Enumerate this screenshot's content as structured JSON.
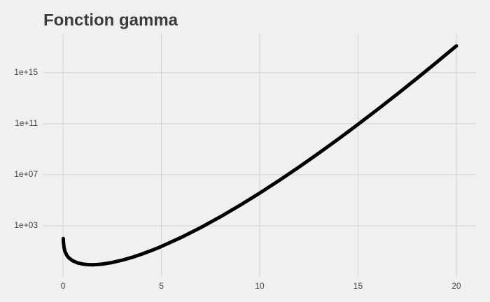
{
  "chart_data": {
    "type": "line",
    "title": "Fonction gamma",
    "x": [
      0.01,
      0.02,
      0.05,
      0.1,
      0.2,
      0.3,
      0.5,
      0.75,
      1,
      1.25,
      1.5,
      1.75,
      2,
      2.5,
      3,
      3.5,
      4,
      4.5,
      5,
      6,
      7,
      8,
      9,
      10,
      11,
      12,
      13,
      14,
      15,
      16,
      17,
      18,
      19,
      20
    ],
    "series": [
      {
        "color": "#000000",
        "values": [
          99.43,
          49.44,
          19.47,
          9.514,
          4.591,
          2.992,
          1.772,
          1.225,
          1,
          0.9064,
          0.8862,
          0.9191,
          1,
          1.329,
          2,
          3.323,
          6,
          11.63,
          24,
          120,
          720,
          5040,
          40320,
          362880,
          3628800,
          39916800,
          479001600,
          6227020800,
          87178291200,
          1307674000000.0,
          20922790000000.0,
          355687400000000.0,
          6402374000000000.0,
          1.216451e+17
        ]
      }
    ],
    "xlim": [
      -1,
      21
    ],
    "xticks": [
      0,
      5,
      10,
      15,
      20
    ],
    "ylim": [
      0.1,
      1e+18
    ],
    "log_y": true,
    "yticks": [
      {
        "value": 1000,
        "label": "1e+03"
      },
      {
        "value": 10000000.0,
        "label": "1e+07"
      },
      {
        "value": 100000000000.0,
        "label": "1e+11"
      },
      {
        "value": 1000000000000000.0,
        "label": "1e+15"
      }
    ],
    "grid": true
  }
}
